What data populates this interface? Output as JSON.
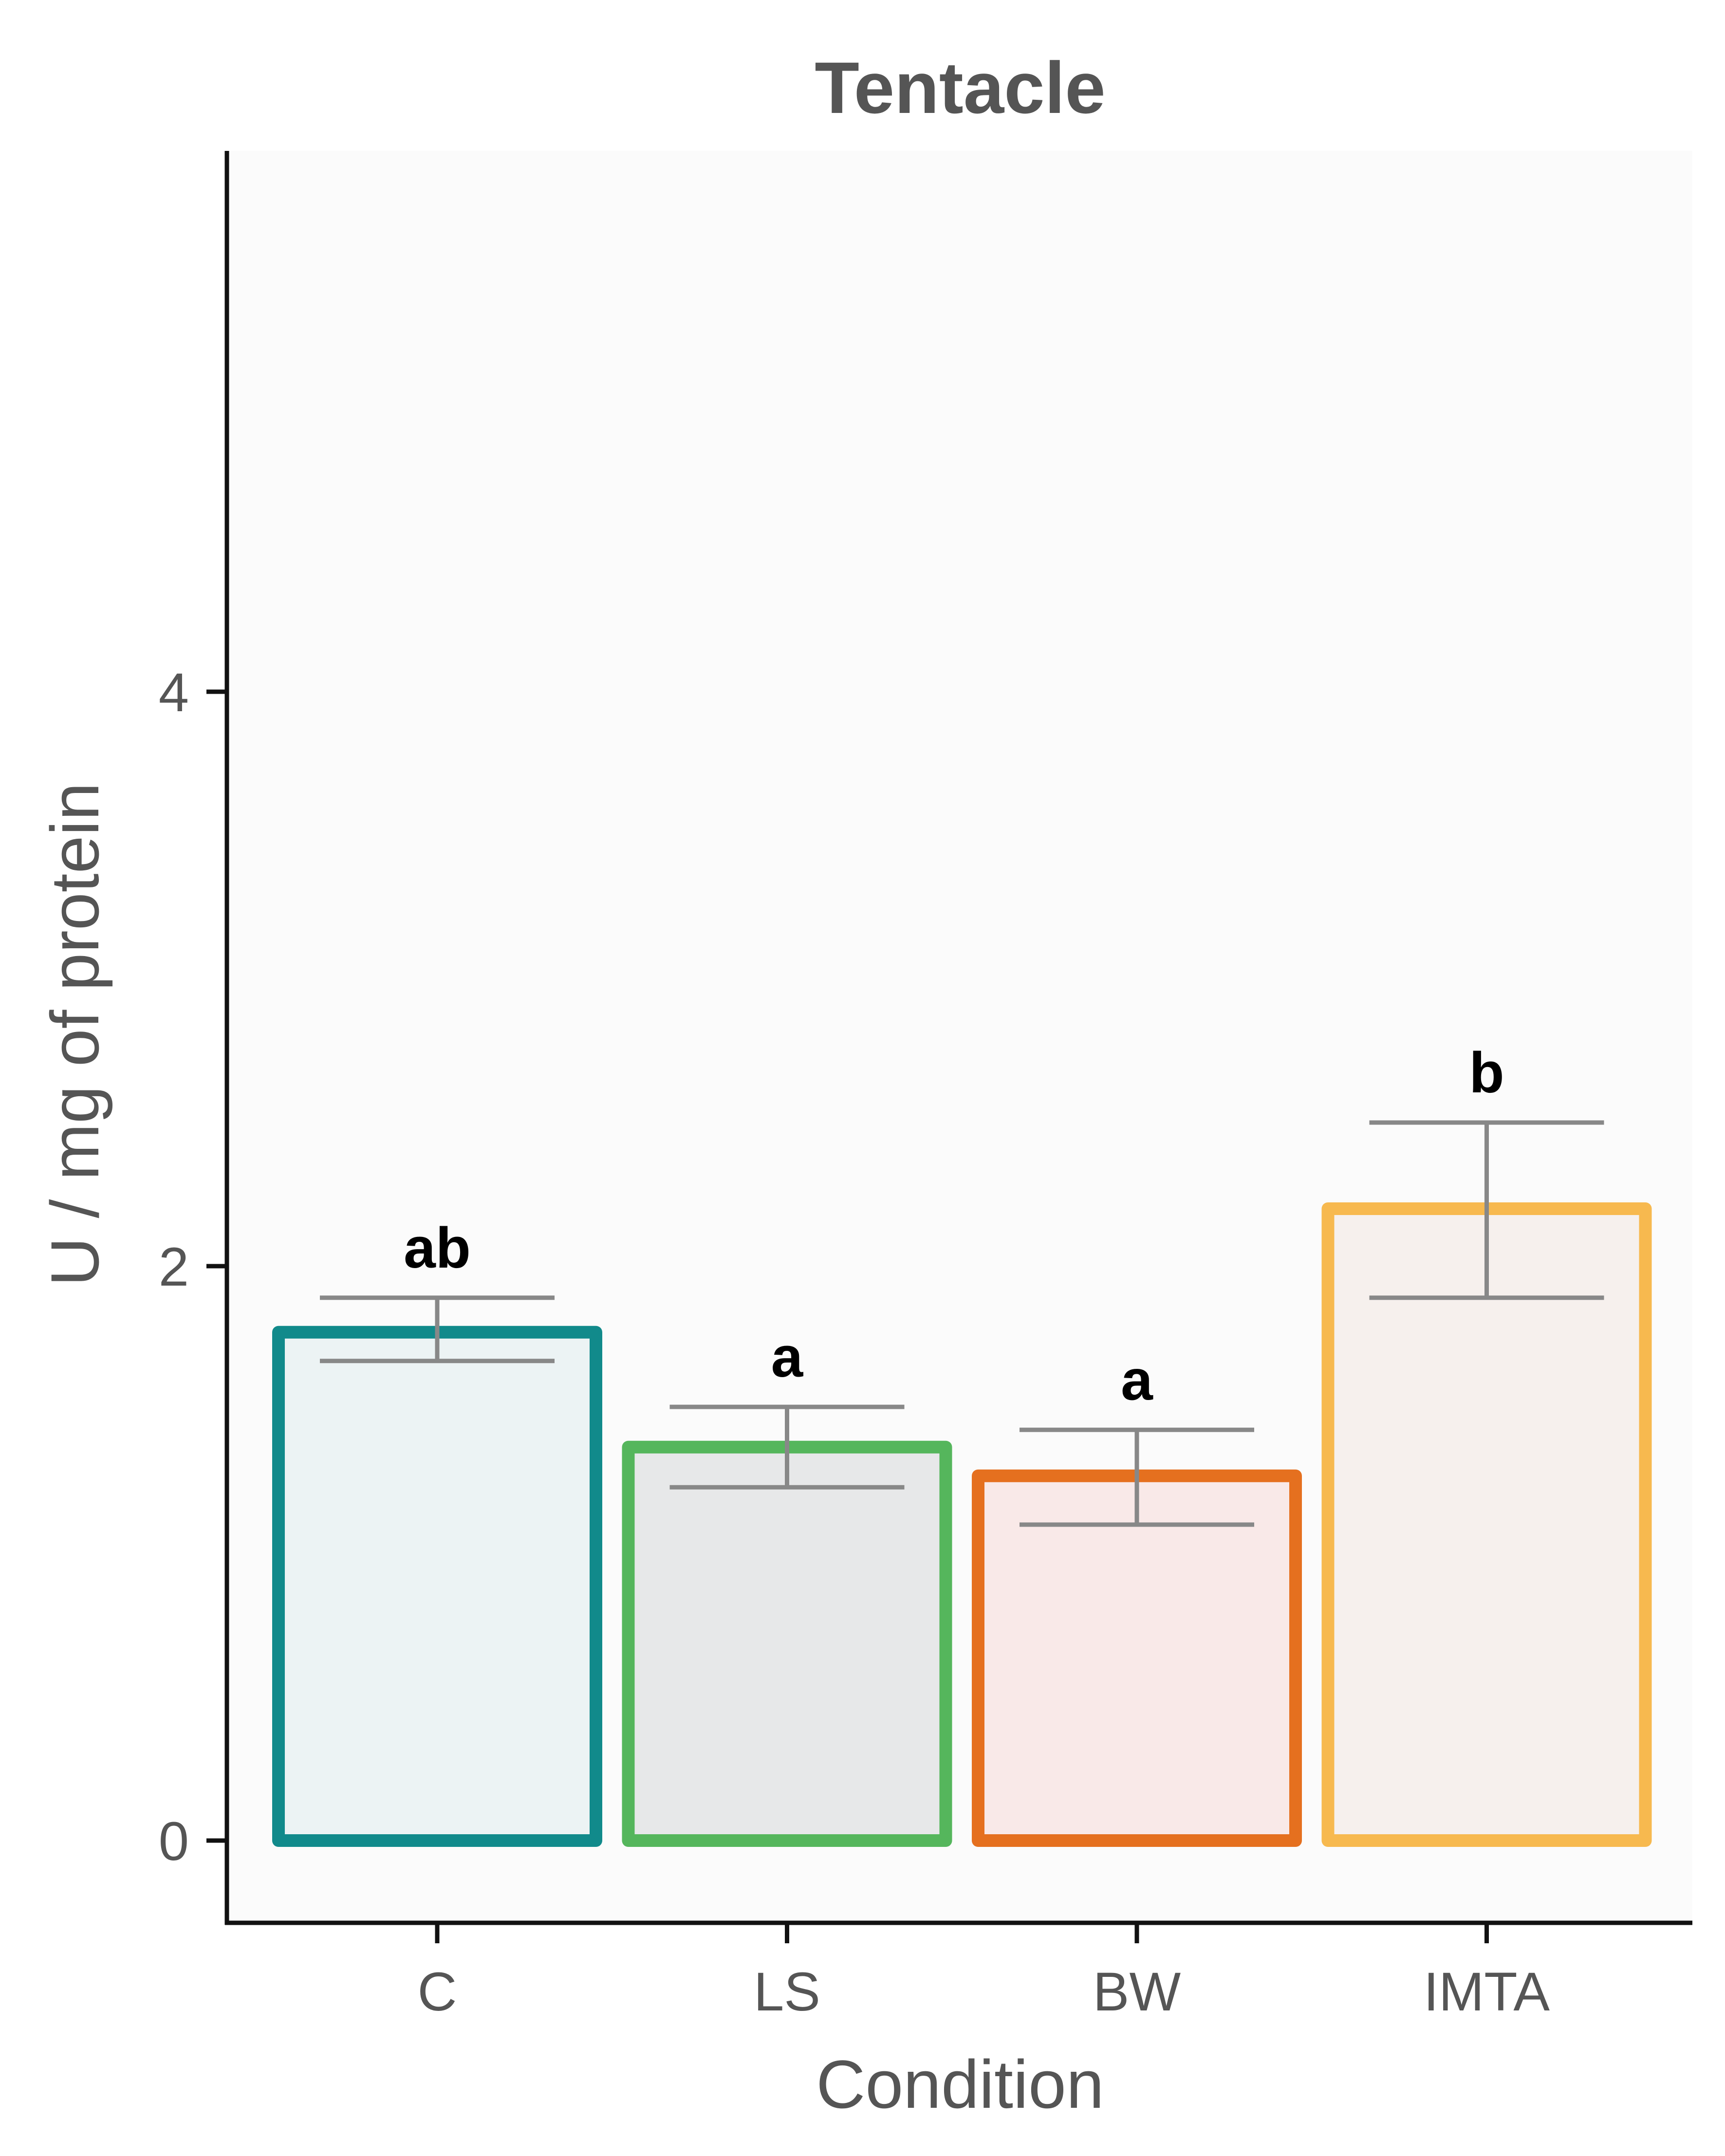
{
  "chart_data": {
    "type": "bar",
    "title": "Tentacle",
    "xlabel": "Condition",
    "ylabel": "U / mg  of protein",
    "categories": [
      "C",
      "LS",
      "BW",
      "IMTA"
    ],
    "values": [
      1.77,
      1.37,
      1.27,
      2.2
    ],
    "error_upper": [
      1.89,
      1.51,
      1.43,
      2.5
    ],
    "error_lower": [
      1.67,
      1.23,
      1.1,
      1.89
    ],
    "significance_labels": [
      "ab",
      "a",
      "a",
      "b"
    ],
    "bar_outline_colors": [
      "#118a8b",
      "#55b65c",
      "#e5701f",
      "#f7b94f"
    ],
    "bar_fill_colors": [
      "#ecf3f4",
      "#e7e8e9",
      "#f9e9e8",
      "#f6f0ed"
    ],
    "error_bar_color": "#888888",
    "panel_background": "#fbfbfb",
    "ylim": [
      -0.28,
      5.3
    ],
    "yticks": [
      0,
      2,
      4
    ],
    "grid": false,
    "legend": "none"
  }
}
